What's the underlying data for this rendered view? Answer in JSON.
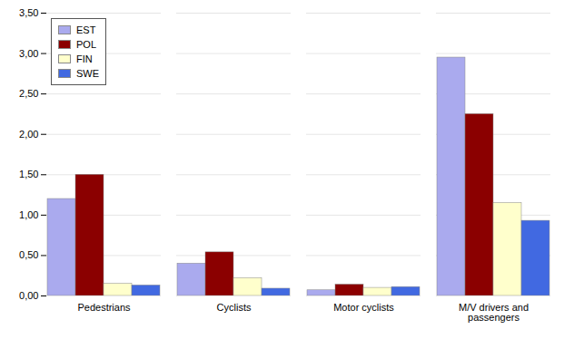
{
  "chart_data": {
    "type": "bar",
    "categories": [
      "Pedestrians",
      "Cyclists",
      "Motor cyclists",
      "M/V drivers and\npassengers"
    ],
    "series": [
      {
        "name": "EST",
        "color": "#aaaaee",
        "values": [
          1.2,
          0.4,
          0.07,
          2.95
        ]
      },
      {
        "name": "POL",
        "color": "#8b0000",
        "values": [
          1.5,
          0.54,
          0.14,
          2.25
        ]
      },
      {
        "name": "FIN",
        "color": "#ffffcc",
        "values": [
          0.15,
          0.22,
          0.1,
          1.15
        ]
      },
      {
        "name": "SWE",
        "color": "#4169e1",
        "values": [
          0.13,
          0.09,
          0.11,
          0.93
        ]
      }
    ],
    "ylim": [
      0,
      3.5
    ],
    "yticks": [
      {
        "value": 0.0,
        "label": "0,00"
      },
      {
        "value": 0.5,
        "label": "0,50"
      },
      {
        "value": 1.0,
        "label": "1,00"
      },
      {
        "value": 1.5,
        "label": "1,50"
      },
      {
        "value": 2.0,
        "label": "2,00"
      },
      {
        "value": 2.5,
        "label": "2,50"
      },
      {
        "value": 3.0,
        "label": "3,00"
      },
      {
        "value": 3.5,
        "label": "3,50"
      }
    ],
    "grid": true,
    "legend": "upper left"
  }
}
